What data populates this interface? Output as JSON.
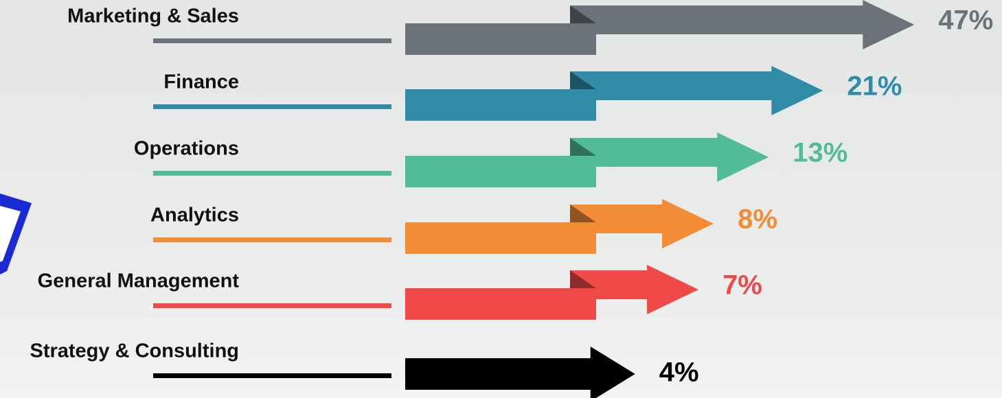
{
  "chart_data": {
    "type": "arrow-bar",
    "categories": [
      "Marketing & Sales",
      "Finance",
      "Operations",
      "Analytics",
      "General Management",
      "Strategy & Consulting"
    ],
    "values": [
      47,
      21,
      13,
      8,
      7,
      4
    ],
    "value_labels": [
      "47%",
      "21%",
      "13%",
      "8%",
      "7%",
      "4%"
    ],
    "colors": [
      "#6b7278",
      "#318ca8",
      "#52bc9a",
      "#f28c35",
      "#ef4a47",
      "#000000"
    ],
    "log_scale": true
  }
}
